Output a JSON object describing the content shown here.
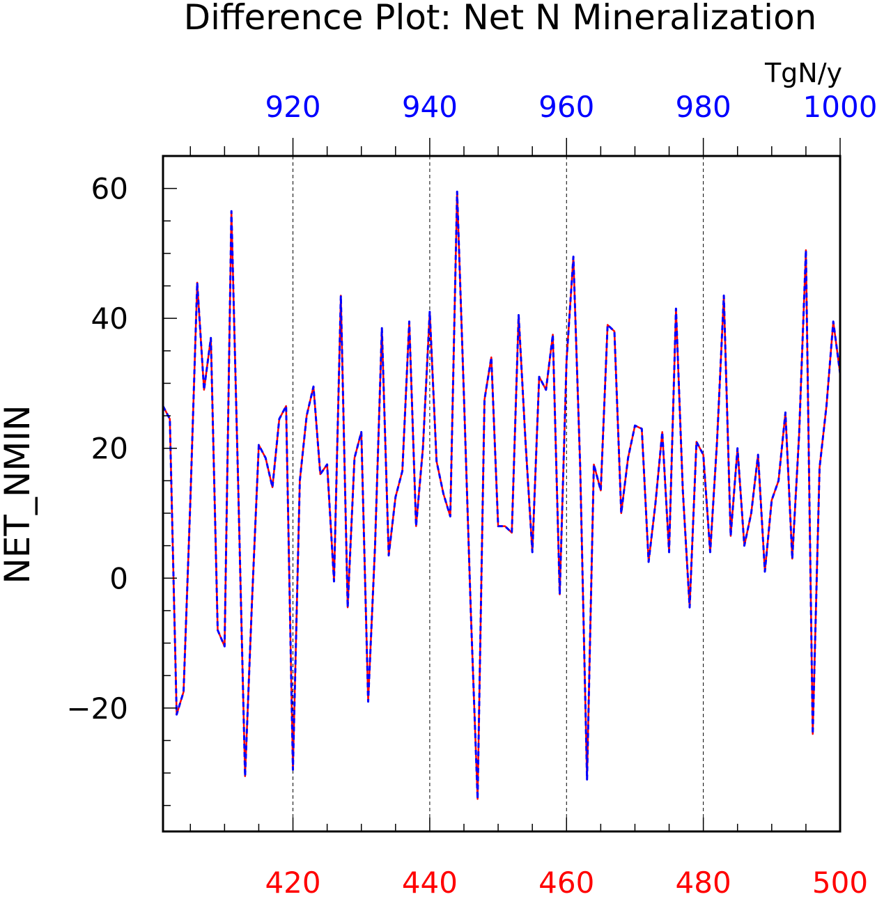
{
  "chart_data": {
    "type": "line",
    "title": "Difference Plot: Net N Mineralization",
    "units_label": "TgN/y",
    "ylabel": "NET_NMIN",
    "xlabel": "",
    "x_range_bottom": [
      401,
      500
    ],
    "x_range_top": [
      901,
      1000
    ],
    "ylim": [
      -39,
      65
    ],
    "y_ticks": [
      -20,
      0,
      20,
      40,
      60
    ],
    "y_tick_labels": [
      "−20",
      "0",
      "20",
      "40",
      "60"
    ],
    "x_ticks_bottom": [
      420,
      440,
      460,
      480,
      500
    ],
    "x_tick_labels_bottom": [
      "420",
      "440",
      "460",
      "480",
      "500"
    ],
    "x_ticks_top": [
      920,
      940,
      960,
      980,
      1000
    ],
    "x_tick_labels_top": [
      "920",
      "940",
      "960",
      "980",
      "1000"
    ],
    "vertical_gridlines_at_bottom_x": [
      420,
      440,
      460,
      480
    ],
    "grid": "dashed vertical lines at major x ticks",
    "bottom_axis_color": "#ff0000",
    "top_axis_color": "#0000ff",
    "x": [
      401,
      402,
      403,
      404,
      405,
      406,
      407,
      408,
      409,
      410,
      411,
      412,
      413,
      414,
      415,
      416,
      417,
      418,
      419,
      420,
      421,
      422,
      423,
      424,
      425,
      426,
      427,
      428,
      429,
      430,
      431,
      432,
      433,
      434,
      435,
      436,
      437,
      438,
      439,
      440,
      441,
      442,
      443,
      444,
      445,
      446,
      447,
      448,
      449,
      450,
      451,
      452,
      453,
      454,
      455,
      456,
      457,
      458,
      459,
      460,
      461,
      462,
      463,
      464,
      465,
      466,
      467,
      468,
      469,
      470,
      471,
      472,
      473,
      474,
      475,
      476,
      477,
      478,
      479,
      480,
      481,
      482,
      483,
      484,
      485,
      486,
      487,
      488,
      489,
      490,
      491,
      492,
      493,
      494,
      495,
      496,
      497,
      498,
      499,
      500
    ],
    "series": [
      {
        "color": "#ff0000",
        "style": "solid",
        "values": [
          26.5,
          24.5,
          -21,
          -17.5,
          12,
          45.5,
          29,
          37,
          -8,
          -10.5,
          56.5,
          14,
          -30.5,
          -4,
          20.5,
          18.5,
          14,
          24.5,
          26.5,
          -29.5,
          15,
          25,
          29.5,
          16,
          17.5,
          -0.5,
          43.5,
          -4.5,
          18.5,
          22.5,
          -19,
          5,
          38.5,
          3.5,
          12.5,
          16.5,
          39.5,
          8,
          20,
          41,
          18,
          13,
          9.5,
          59.5,
          28,
          -5,
          -34,
          27.5,
          34,
          8,
          8,
          7,
          40.5,
          21,
          4,
          31,
          29,
          37.5,
          -2.5,
          33.5,
          49.5,
          17,
          -31,
          17.5,
          13.5,
          39,
          38,
          10,
          18.5,
          23.5,
          23,
          2.5,
          11.5,
          22.5,
          4,
          41.5,
          13.5,
          -4.5,
          21,
          19,
          4,
          21,
          43.5,
          6.5,
          20,
          5,
          10,
          19,
          1,
          12,
          15,
          25.5,
          3,
          22,
          50.5,
          -24,
          17,
          26.5,
          39.5,
          31.5
        ]
      },
      {
        "color": "#0000ff",
        "style": "dashed",
        "values": [
          26.5,
          24.5,
          -21,
          -17.5,
          12,
          45.5,
          29,
          37,
          -8,
          -10.5,
          56.5,
          14,
          -30.5,
          -4,
          20.5,
          18.5,
          14,
          24.5,
          26.5,
          -29.5,
          15,
          25,
          29.5,
          16,
          17.5,
          -0.5,
          43.5,
          -4.5,
          18.5,
          22.5,
          -19,
          5,
          38.5,
          3.5,
          12.5,
          16.5,
          39.5,
          8,
          20,
          41,
          18,
          13,
          9.5,
          59.5,
          28,
          -5,
          -34,
          27.5,
          34,
          8,
          8,
          7,
          40.5,
          21,
          4,
          31,
          29,
          37.5,
          -2.5,
          33.5,
          49.5,
          17,
          -31,
          17.5,
          13.5,
          39,
          38,
          10,
          18.5,
          23.5,
          23,
          2.5,
          11.5,
          22.5,
          4,
          41.5,
          13.5,
          -4.5,
          21,
          19,
          4,
          21,
          43.5,
          6.5,
          20,
          5,
          10,
          19,
          1,
          12,
          15,
          25.5,
          3,
          22,
          50.5,
          -24,
          17,
          26.5,
          39.5,
          31.5
        ]
      }
    ]
  }
}
